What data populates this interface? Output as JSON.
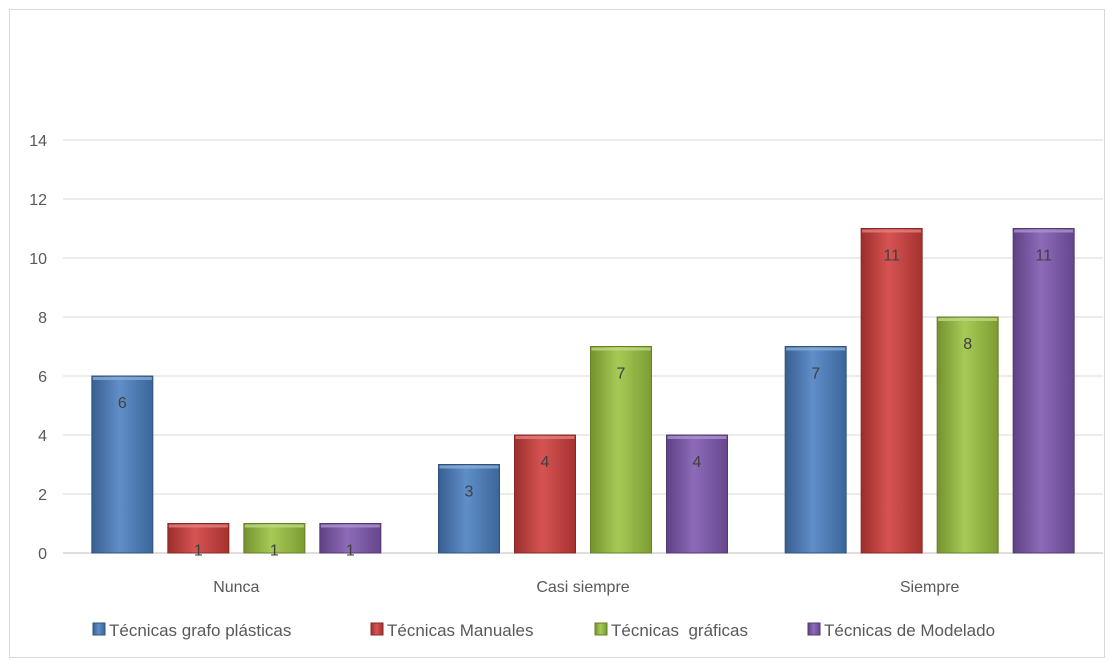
{
  "chart_data": {
    "type": "bar",
    "categories": [
      "Nunca",
      "Casi siempre",
      "Siempre"
    ],
    "series": [
      {
        "name": "Técnicas grafo plásticas",
        "values": [
          6,
          3,
          7
        ],
        "color": "#4a7fc1"
      },
      {
        "name": "Técnicas Manuales",
        "values": [
          1,
          4,
          11
        ],
        "color": "#d03d3b"
      },
      {
        "name": "Técnicas  gráficas",
        "values": [
          1,
          7,
          8
        ],
        "color": "#9bc33f"
      },
      {
        "name": "Técnicas de Modelado",
        "values": [
          1,
          4,
          11
        ],
        "color": "#7e57b0"
      }
    ],
    "title": "",
    "xlabel": "",
    "ylabel": "",
    "ylim": [
      0,
      14
    ],
    "yticks": [
      0,
      2,
      4,
      6,
      8,
      10,
      12,
      14
    ],
    "grid": true,
    "legend": "bottom",
    "data_labels": true
  }
}
